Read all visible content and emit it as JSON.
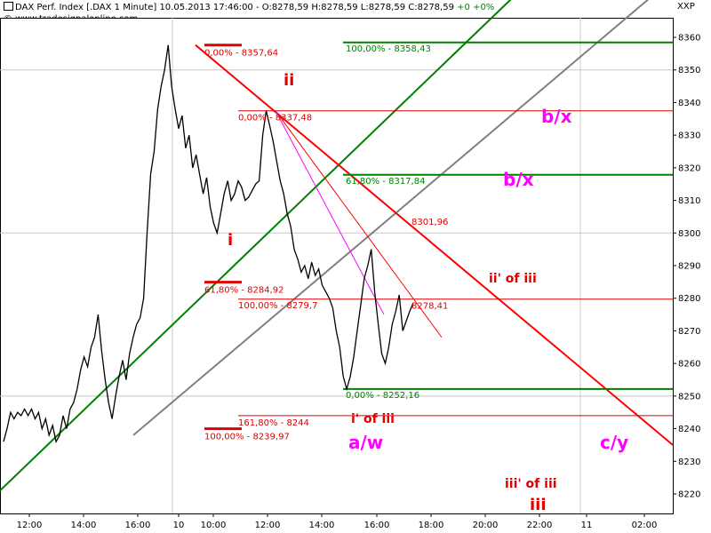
{
  "header": {
    "line1": "DAX Perf. Index [.DAX  1 Minute] 10.05.2013 17:46:00 - O:8278,59 H:8278,59 L:8278,59 C:8278,59",
    "change": "+0 +0%",
    "line2": "© www.tradesignalonline.com",
    "corner_label": "XXP"
  },
  "colors": {
    "price": "#000000",
    "fib_red": "#e00000",
    "fib_green": "#008000",
    "trend_red": "#ff0000",
    "trend_green": "#008000",
    "channel_gray": "#808080",
    "magenta": "#ff00ff",
    "wave_red": "#e00000",
    "grid": "#c8c8c8"
  },
  "chart_data": {
    "type": "line",
    "title": "DAX Perf. Index [.DAX 1 Minute]",
    "ylim": [
      8214,
      8366
    ],
    "y_ticks": [
      8220,
      8230,
      8240,
      8250,
      8260,
      8270,
      8280,
      8290,
      8300,
      8310,
      8320,
      8330,
      8340,
      8350,
      8360
    ],
    "x_ticks": [
      "12:00",
      "14:00",
      "16:00",
      "10",
      "10:00",
      "12:00",
      "14:00",
      "16:00",
      "18:00",
      "20:00",
      "22:00",
      "11",
      "02:00"
    ],
    "series": [
      {
        "values": [
          [
            0,
            8236
          ],
          [
            2,
            8240
          ],
          [
            4,
            8245
          ],
          [
            6,
            8243
          ],
          [
            8,
            8245
          ],
          [
            10,
            8244
          ],
          [
            12,
            8246
          ],
          [
            14,
            8244
          ],
          [
            16,
            8246
          ],
          [
            18,
            8243
          ],
          [
            20,
            8245
          ],
          [
            22,
            8240
          ],
          [
            24,
            8243
          ],
          [
            26,
            8238
          ],
          [
            28,
            8241
          ],
          [
            30,
            8236
          ],
          [
            32,
            8238
          ],
          [
            34,
            8244
          ],
          [
            36,
            8240
          ],
          [
            38,
            8246
          ],
          [
            40,
            8248
          ],
          [
            42,
            8252
          ],
          [
            44,
            8258
          ],
          [
            46,
            8262
          ],
          [
            48,
            8259
          ],
          [
            50,
            8265
          ],
          [
            52,
            8268
          ],
          [
            54,
            8275
          ],
          [
            56,
            8264
          ],
          [
            58,
            8255
          ],
          [
            60,
            8248
          ],
          [
            62,
            8243
          ],
          [
            64,
            8250
          ],
          [
            66,
            8256
          ],
          [
            68,
            8261
          ],
          [
            70,
            8255
          ],
          [
            72,
            8263
          ],
          [
            74,
            8268
          ],
          [
            76,
            8272
          ],
          [
            78,
            8274
          ],
          [
            80,
            8280
          ],
          [
            82,
            8300
          ],
          [
            84,
            8318
          ],
          [
            86,
            8325
          ],
          [
            88,
            8338
          ],
          [
            90,
            8345
          ],
          [
            92,
            8350
          ],
          [
            94,
            8357.64
          ],
          [
            96,
            8345
          ],
          [
            98,
            8338
          ],
          [
            100,
            8332
          ],
          [
            102,
            8336
          ],
          [
            104,
            8326
          ],
          [
            106,
            8330
          ],
          [
            108,
            8320
          ],
          [
            110,
            8324
          ],
          [
            112,
            8318
          ],
          [
            114,
            8312
          ],
          [
            116,
            8317
          ],
          [
            118,
            8308
          ],
          [
            120,
            8303
          ],
          [
            122,
            8300
          ],
          [
            124,
            8306
          ],
          [
            126,
            8312
          ],
          [
            128,
            8316
          ],
          [
            130,
            8310
          ],
          [
            132,
            8312
          ],
          [
            134,
            8316
          ],
          [
            136,
            8314
          ],
          [
            138,
            8310
          ],
          [
            140,
            8311
          ],
          [
            142,
            8313
          ],
          [
            144,
            8315
          ],
          [
            146,
            8316
          ],
          [
            148,
            8330
          ],
          [
            150,
            8337.48
          ],
          [
            152,
            8333
          ],
          [
            154,
            8328
          ],
          [
            156,
            8322
          ],
          [
            158,
            8316
          ],
          [
            160,
            8312
          ],
          [
            162,
            8306
          ],
          [
            164,
            8302
          ],
          [
            166,
            8295
          ],
          [
            168,
            8292
          ],
          [
            170,
            8288
          ],
          [
            172,
            8290
          ],
          [
            174,
            8286
          ],
          [
            176,
            8291
          ],
          [
            178,
            8287
          ],
          [
            180,
            8289
          ],
          [
            182,
            8284
          ],
          [
            184,
            8282
          ],
          [
            186,
            8280
          ],
          [
            188,
            8277
          ],
          [
            190,
            8270
          ],
          [
            192,
            8265
          ],
          [
            194,
            8256
          ],
          [
            196,
            8252.16
          ],
          [
            198,
            8256
          ],
          [
            200,
            8262
          ],
          [
            202,
            8270
          ],
          [
            204,
            8278
          ],
          [
            206,
            8286
          ],
          [
            208,
            8290
          ],
          [
            210,
            8295
          ],
          [
            212,
            8282
          ],
          [
            214,
            8272
          ],
          [
            216,
            8263
          ],
          [
            218,
            8260
          ],
          [
            220,
            8265
          ],
          [
            222,
            8272
          ],
          [
            224,
            8276
          ],
          [
            226,
            8281
          ],
          [
            228,
            8270
          ],
          [
            230,
            8273
          ],
          [
            232,
            8276
          ],
          [
            234,
            8278.59
          ]
        ]
      }
    ],
    "fib_levels": [
      {
        "text": "0,00% - 8357,64",
        "value": 8357.64,
        "color": "fib_red",
        "style": "short"
      },
      {
        "text": "100,00% - 8358,43",
        "value": 8358.43,
        "color": "fib_green",
        "style": "long"
      },
      {
        "text": "0,00% - 8337,48",
        "value": 8337.48,
        "color": "fib_red",
        "style": "long"
      },
      {
        "text": "61,80% - 8317,84",
        "value": 8317.84,
        "color": "fib_green",
        "style": "long"
      },
      {
        "text": "61,80% - 8284,92",
        "value": 8284.92,
        "color": "fib_red",
        "style": "short"
      },
      {
        "text": "100,00% - 8279,7",
        "value": 8279.7,
        "color": "fib_red",
        "style": "long"
      },
      {
        "text": "0,00% - 8252,16",
        "value": 8252.16,
        "color": "fib_green",
        "style": "long"
      },
      {
        "text": "161,80% - 8244",
        "value": 8244,
        "color": "fib_red",
        "style": "long"
      },
      {
        "text": "100,00% - 8239,97",
        "value": 8239.97,
        "color": "fib_red",
        "style": "short"
      }
    ],
    "value_labels": [
      {
        "text": "8301,96",
        "value": 8301.96
      },
      {
        "text": "8278,41",
        "value": 8278.41
      }
    ],
    "wave_labels": [
      {
        "text": "ii",
        "color": "wave_red"
      },
      {
        "text": "i",
        "color": "wave_red"
      },
      {
        "text": "b/x",
        "color": "magenta"
      },
      {
        "text": "b/x",
        "color": "magenta"
      },
      {
        "text": "ii' of iii",
        "color": "wave_red"
      },
      {
        "text": "i' of iii",
        "color": "wave_red"
      },
      {
        "text": "a/w",
        "color": "magenta"
      },
      {
        "text": "c/y",
        "color": "magenta"
      },
      {
        "text": "iii' of iii",
        "color": "wave_red"
      },
      {
        "text": "iii",
        "color": "wave_red"
      }
    ]
  }
}
